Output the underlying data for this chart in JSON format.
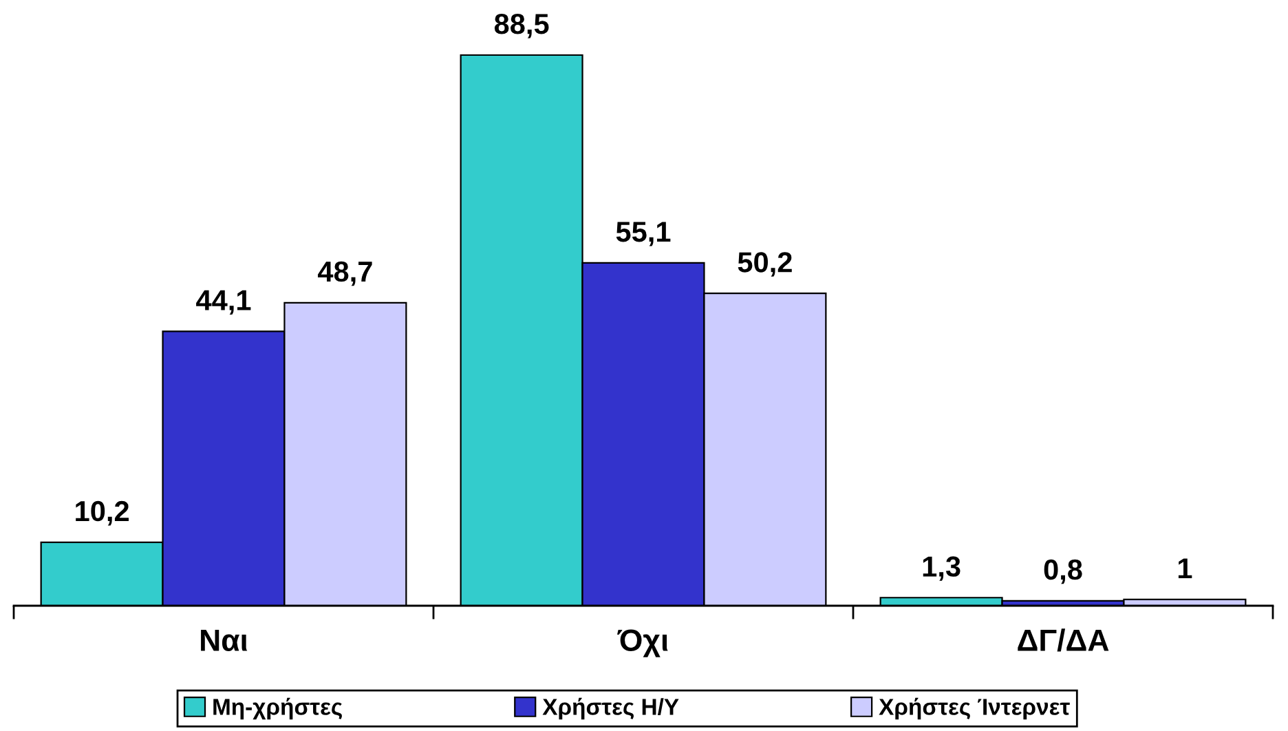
{
  "chart_data": {
    "type": "bar",
    "categories": [
      "Ναι",
      "Όχι",
      "ΔΓ/ΔΑ"
    ],
    "series": [
      {
        "name": "Μη-χρήστες",
        "color": "#33cccc",
        "values": [
          10.2,
          88.5,
          1.3
        ],
        "value_labels": [
          "10,2",
          "88,5",
          "1,3"
        ]
      },
      {
        "name": "Χρήστες Η/Υ",
        "color": "#3333cc",
        "values": [
          44.1,
          55.1,
          0.8
        ],
        "value_labels": [
          "44,1",
          "55,1",
          "0,8"
        ]
      },
      {
        "name": "Χρήστες Ίντερνετ",
        "color": "#ccccff",
        "values": [
          48.7,
          50.2,
          1
        ],
        "value_labels": [
          "48,7",
          "50,2",
          "1"
        ]
      }
    ],
    "legend": "bottom"
  }
}
